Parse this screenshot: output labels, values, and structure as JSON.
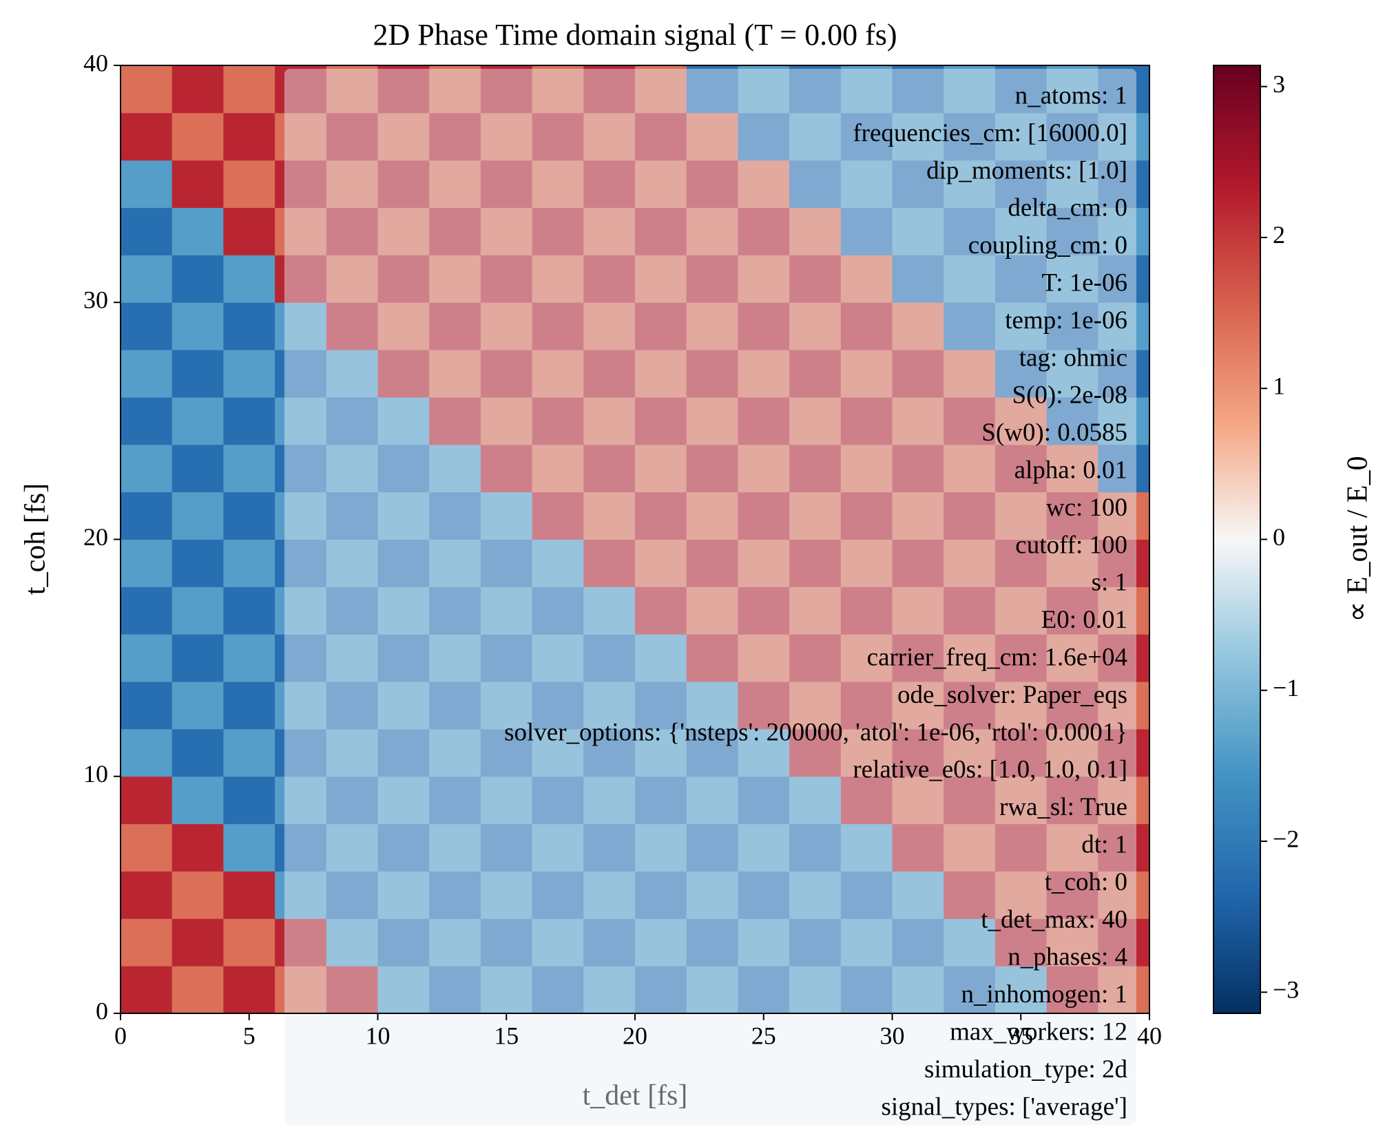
{
  "chart_data": {
    "type": "heatmap",
    "title": "2D Phase Time domain signal (T = 0.00 fs)",
    "xlabel": "t_det [fs]",
    "ylabel": "t_coh [fs]",
    "colorbar_label": "∝ E_out / E_0",
    "colormap": "RdBu_r",
    "xlim": [
      0,
      40
    ],
    "ylim": [
      0,
      40
    ],
    "xticks": [
      0,
      5,
      10,
      15,
      20,
      25,
      30,
      35,
      40
    ],
    "yticks": [
      0,
      10,
      20,
      30,
      40
    ],
    "clim": [
      -3.14,
      3.14
    ],
    "cticks": [
      {
        "value": -3,
        "label": "−3"
      },
      {
        "value": -2,
        "label": "−2"
      },
      {
        "value": -1,
        "label": "−1"
      },
      0,
      1,
      2,
      3
    ],
    "cell_size": 2,
    "x": [
      1,
      3,
      5,
      7,
      9,
      11,
      13,
      15,
      17,
      19,
      21,
      23,
      25,
      27,
      29,
      31,
      33,
      35,
      37,
      39
    ],
    "y": [
      1,
      3,
      5,
      7,
      9,
      11,
      13,
      15,
      17,
      19,
      21,
      23,
      25,
      27,
      29,
      31,
      33,
      35,
      37,
      39
    ],
    "z": [
      [
        2.2,
        1.4,
        2.2,
        1.4,
        2.2,
        -1.4,
        -2.2,
        -1.4,
        -2.2,
        -1.4,
        -2.2,
        -1.4,
        -2.2,
        -1.4,
        -2.2,
        -1.4,
        -2.2,
        -1.4,
        2.2,
        1.4
      ],
      [
        1.4,
        2.2,
        1.4,
        2.2,
        -1.4,
        -2.2,
        -1.4,
        -2.2,
        -1.4,
        -2.2,
        -1.4,
        -2.2,
        -1.4,
        -2.2,
        -1.4,
        -2.2,
        -1.4,
        2.2,
        1.4,
        2.2
      ],
      [
        2.2,
        1.4,
        2.2,
        -1.4,
        -2.2,
        -1.4,
        -2.2,
        -1.4,
        -2.2,
        -1.4,
        -2.2,
        -1.4,
        -2.2,
        -1.4,
        -2.2,
        -1.4,
        2.2,
        1.4,
        2.2,
        1.4
      ],
      [
        1.4,
        2.2,
        -1.4,
        -2.2,
        -1.4,
        -2.2,
        -1.4,
        -2.2,
        -1.4,
        -2.2,
        -1.4,
        -2.2,
        -1.4,
        -2.2,
        -1.4,
        2.2,
        1.4,
        2.2,
        1.4,
        2.2
      ],
      [
        2.2,
        -1.4,
        -2.2,
        -1.4,
        -2.2,
        -1.4,
        -2.2,
        -1.4,
        -2.2,
        -1.4,
        -2.2,
        -1.4,
        -2.2,
        -1.4,
        2.2,
        1.4,
        2.2,
        1.4,
        2.2,
        1.4
      ],
      [
        -1.4,
        -2.2,
        -1.4,
        -2.2,
        -1.4,
        -2.2,
        -1.4,
        -2.2,
        -1.4,
        -2.2,
        -1.4,
        -2.2,
        -1.4,
        2.2,
        1.4,
        2.2,
        1.4,
        2.2,
        1.4,
        2.2
      ],
      [
        -2.2,
        -1.4,
        -2.2,
        -1.4,
        -2.2,
        -1.4,
        -2.2,
        -1.4,
        -2.2,
        -1.4,
        -2.2,
        -1.4,
        2.2,
        1.4,
        2.2,
        1.4,
        2.2,
        1.4,
        2.2,
        1.4
      ],
      [
        -1.4,
        -2.2,
        -1.4,
        -2.2,
        -1.4,
        -2.2,
        -1.4,
        -2.2,
        -1.4,
        -2.2,
        -1.4,
        2.2,
        1.4,
        2.2,
        1.4,
        2.2,
        1.4,
        2.2,
        1.4,
        2.2
      ],
      [
        -2.2,
        -1.4,
        -2.2,
        -1.4,
        -2.2,
        -1.4,
        -2.2,
        -1.4,
        -2.2,
        -1.4,
        2.2,
        1.4,
        2.2,
        1.4,
        2.2,
        1.4,
        2.2,
        1.4,
        2.2,
        1.4
      ],
      [
        -1.4,
        -2.2,
        -1.4,
        -2.2,
        -1.4,
        -2.2,
        -1.4,
        -2.2,
        -1.4,
        2.2,
        1.4,
        2.2,
        1.4,
        2.2,
        1.4,
        2.2,
        1.4,
        2.2,
        1.4,
        2.2
      ],
      [
        -2.2,
        -1.4,
        -2.2,
        -1.4,
        -2.2,
        -1.4,
        -2.2,
        -1.4,
        2.2,
        1.4,
        2.2,
        1.4,
        2.2,
        1.4,
        2.2,
        1.4,
        2.2,
        1.4,
        2.2,
        1.4
      ],
      [
        -1.4,
        -2.2,
        -1.4,
        -2.2,
        -1.4,
        -2.2,
        -1.4,
        2.2,
        1.4,
        2.2,
        1.4,
        2.2,
        1.4,
        2.2,
        1.4,
        2.2,
        1.4,
        2.2,
        1.4,
        -2.2
      ],
      [
        -2.2,
        -1.4,
        -2.2,
        -1.4,
        -2.2,
        -1.4,
        2.2,
        1.4,
        2.2,
        1.4,
        2.2,
        1.4,
        2.2,
        1.4,
        2.2,
        1.4,
        2.2,
        1.4,
        -2.2,
        -1.4
      ],
      [
        -1.4,
        -2.2,
        -1.4,
        -2.2,
        -1.4,
        2.2,
        1.4,
        2.2,
        1.4,
        2.2,
        1.4,
        2.2,
        1.4,
        2.2,
        1.4,
        2.2,
        1.4,
        -2.2,
        -1.4,
        -2.2
      ],
      [
        -2.2,
        -1.4,
        -2.2,
        -1.4,
        2.2,
        1.4,
        2.2,
        1.4,
        2.2,
        1.4,
        2.2,
        1.4,
        2.2,
        1.4,
        2.2,
        1.4,
        -2.2,
        -1.4,
        -2.2,
        -1.4
      ],
      [
        -1.4,
        -2.2,
        -1.4,
        2.2,
        1.4,
        2.2,
        1.4,
        2.2,
        1.4,
        2.2,
        1.4,
        2.2,
        1.4,
        2.2,
        1.4,
        -2.2,
        -1.4,
        -2.2,
        -1.4,
        -2.2
      ],
      [
        -2.2,
        -1.4,
        2.2,
        1.4,
        2.2,
        1.4,
        2.2,
        1.4,
        2.2,
        1.4,
        2.2,
        1.4,
        2.2,
        1.4,
        -2.2,
        -1.4,
        -2.2,
        -1.4,
        -2.2,
        -1.4
      ],
      [
        -1.4,
        2.2,
        1.4,
        2.2,
        1.4,
        2.2,
        1.4,
        2.2,
        1.4,
        2.2,
        1.4,
        2.2,
        1.4,
        -2.2,
        -1.4,
        -2.2,
        -1.4,
        -2.2,
        -1.4,
        -2.2
      ],
      [
        2.2,
        1.4,
        2.2,
        1.4,
        2.2,
        1.4,
        2.2,
        1.4,
        2.2,
        1.4,
        2.2,
        1.4,
        -2.2,
        -1.4,
        -2.2,
        -1.4,
        -2.2,
        -1.4,
        -2.2,
        -1.4
      ],
      [
        1.4,
        2.2,
        1.4,
        2.2,
        1.4,
        2.2,
        1.4,
        2.2,
        1.4,
        2.2,
        1.4,
        -2.2,
        -1.4,
        -2.2,
        -1.4,
        -2.2,
        -1.4,
        -2.2,
        -1.4,
        -2.2
      ]
    ],
    "annotation": [
      "n_atoms: 1",
      "frequencies_cm: [16000.0]",
      "dip_moments: [1.0]",
      "delta_cm: 0",
      "coupling_cm: 0",
      "T: 1e-06",
      "temp: 1e-06",
      "tag: ohmic",
      "S(0): 2e-08",
      "S(w0): 0.0585",
      "alpha: 0.01",
      "wc: 100",
      "cutoff: 100",
      "s: 1",
      "E0: 0.01",
      "carrier_freq_cm: 1.6e+04",
      "ode_solver: Paper_eqs",
      "solver_options: {'nsteps': 200000, 'atol': 1e-06, 'rtol': 0.0001}",
      "relative_e0s: [1.0, 1.0, 0.1]",
      "rwa_sl: True",
      "dt: 1",
      "t_coh: 0",
      "t_det_max: 40",
      "n_phases: 4",
      "n_inhomogen: 1",
      "max_workers: 12",
      "simulation_type: 2d",
      "signal_types: ['average']",
      "signal_type: average"
    ]
  }
}
